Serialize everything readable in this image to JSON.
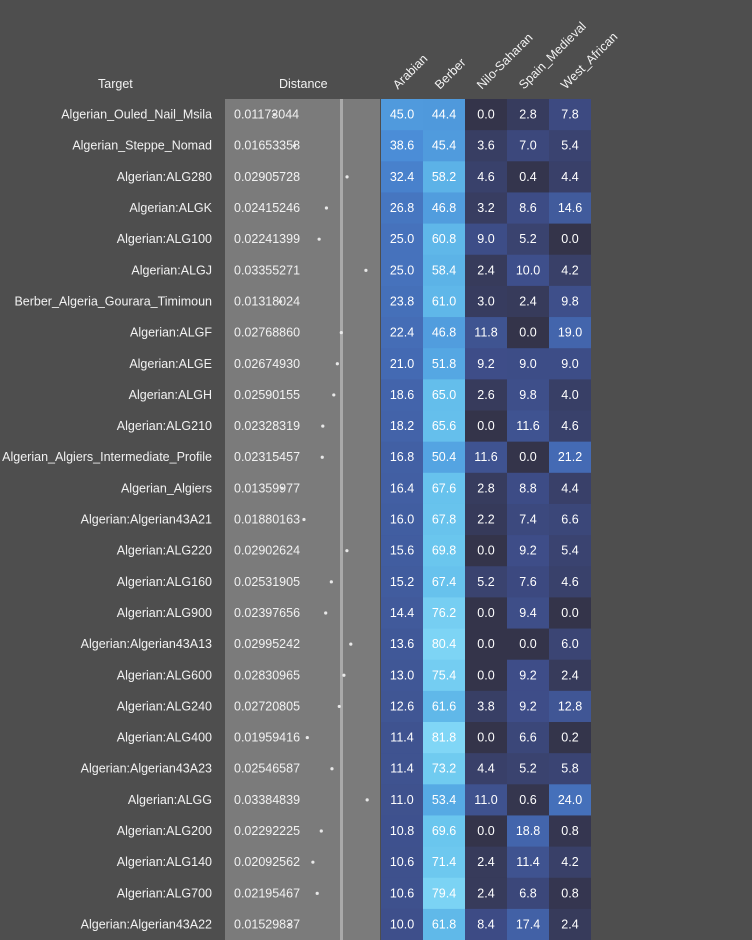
{
  "headers": {
    "target": "Target",
    "distance": "Distance"
  },
  "chart_data": {
    "type": "heatmap",
    "columns": [
      "Arabian",
      "Berber",
      "Nilo-Saharan",
      "Spain_Medieval",
      "West_African"
    ],
    "colors": {
      "background": "#4e4e4e",
      "distance_panel": "#7b7b7b",
      "distance_line": "#a9a9a9",
      "dot": "#e8e8e8",
      "low": "#34344a",
      "high": "#7dd3f3"
    },
    "color_range": [
      0,
      82
    ],
    "distance_range": [
      0.0,
      0.05
    ],
    "rows": [
      {
        "target": "Algerian_Ouled_Nail_Msila",
        "distance": "0.01173044",
        "values": [
          "45.0",
          "44.4",
          "0.0",
          "2.8",
          "7.8"
        ]
      },
      {
        "target": "Algerian_Steppe_Nomad",
        "distance": "0.01653358",
        "values": [
          "38.6",
          "45.4",
          "3.6",
          "7.0",
          "5.4"
        ]
      },
      {
        "target": "Algerian:ALG280",
        "distance": "0.02905728",
        "values": [
          "32.4",
          "58.2",
          "4.6",
          "0.4",
          "4.4"
        ]
      },
      {
        "target": "Algerian:ALGK",
        "distance": "0.02415246",
        "values": [
          "26.8",
          "46.8",
          "3.2",
          "8.6",
          "14.6"
        ]
      },
      {
        "target": "Algerian:ALG100",
        "distance": "0.02241399",
        "values": [
          "25.0",
          "60.8",
          "9.0",
          "5.2",
          "0.0"
        ]
      },
      {
        "target": "Algerian:ALGJ",
        "distance": "0.03355271",
        "values": [
          "25.0",
          "58.4",
          "2.4",
          "10.0",
          "4.2"
        ]
      },
      {
        "target": "Berber_Algeria_Gourara_Timimoun",
        "distance": "0.01318024",
        "values": [
          "23.8",
          "61.0",
          "3.0",
          "2.4",
          "9.8"
        ]
      },
      {
        "target": "Algerian:ALGF",
        "distance": "0.02768860",
        "values": [
          "22.4",
          "46.8",
          "11.8",
          "0.0",
          "19.0"
        ]
      },
      {
        "target": "Algerian:ALGE",
        "distance": "0.02674930",
        "values": [
          "21.0",
          "51.8",
          "9.2",
          "9.0",
          "9.0"
        ]
      },
      {
        "target": "Algerian:ALGH",
        "distance": "0.02590155",
        "values": [
          "18.6",
          "65.0",
          "2.6",
          "9.8",
          "4.0"
        ]
      },
      {
        "target": "Algerian:ALG210",
        "distance": "0.02328319",
        "values": [
          "18.2",
          "65.6",
          "0.0",
          "11.6",
          "4.6"
        ]
      },
      {
        "target": "Algerian_Algiers_Intermediate_Profile",
        "distance": "0.02315457",
        "values": [
          "16.8",
          "50.4",
          "11.6",
          "0.0",
          "21.2"
        ]
      },
      {
        "target": "Algerian_Algiers",
        "distance": "0.01359977",
        "values": [
          "16.4",
          "67.6",
          "2.8",
          "8.8",
          "4.4"
        ]
      },
      {
        "target": "Algerian:Algerian43A21",
        "distance": "0.01880163",
        "values": [
          "16.0",
          "67.8",
          "2.2",
          "7.4",
          "6.6"
        ]
      },
      {
        "target": "Algerian:ALG220",
        "distance": "0.02902624",
        "values": [
          "15.6",
          "69.8",
          "0.0",
          "9.2",
          "5.4"
        ]
      },
      {
        "target": "Algerian:ALG160",
        "distance": "0.02531905",
        "values": [
          "15.2",
          "67.4",
          "5.2",
          "7.6",
          "4.6"
        ]
      },
      {
        "target": "Algerian:ALG900",
        "distance": "0.02397656",
        "values": [
          "14.4",
          "76.2",
          "0.0",
          "9.4",
          "0.0"
        ]
      },
      {
        "target": "Algerian:Algerian43A13",
        "distance": "0.02995242",
        "values": [
          "13.6",
          "80.4",
          "0.0",
          "0.0",
          "6.0"
        ]
      },
      {
        "target": "Algerian:ALG600",
        "distance": "0.02830965",
        "values": [
          "13.0",
          "75.4",
          "0.0",
          "9.2",
          "2.4"
        ]
      },
      {
        "target": "Algerian:ALG240",
        "distance": "0.02720805",
        "values": [
          "12.6",
          "61.6",
          "3.8",
          "9.2",
          "12.8"
        ]
      },
      {
        "target": "Algerian:ALG400",
        "distance": "0.01959416",
        "values": [
          "11.4",
          "81.8",
          "0.0",
          "6.6",
          "0.2"
        ]
      },
      {
        "target": "Algerian:Algerian43A23",
        "distance": "0.02546587",
        "values": [
          "11.4",
          "73.2",
          "4.4",
          "5.2",
          "5.8"
        ]
      },
      {
        "target": "Algerian:ALGG",
        "distance": "0.03384839",
        "values": [
          "11.0",
          "53.4",
          "11.0",
          "0.6",
          "24.0"
        ]
      },
      {
        "target": "Algerian:ALG200",
        "distance": "0.02292225",
        "values": [
          "10.8",
          "69.6",
          "0.0",
          "18.8",
          "0.8"
        ]
      },
      {
        "target": "Algerian:ALG140",
        "distance": "0.02092562",
        "values": [
          "10.6",
          "71.4",
          "2.4",
          "11.4",
          "4.2"
        ]
      },
      {
        "target": "Algerian:ALG700",
        "distance": "0.02195467",
        "values": [
          "10.6",
          "79.4",
          "2.4",
          "6.8",
          "0.8"
        ]
      },
      {
        "target": "Algerian:Algerian43A22",
        "distance": "0.01529837",
        "values": [
          "10.0",
          "61.8",
          "8.4",
          "17.4",
          "2.4"
        ]
      }
    ]
  }
}
